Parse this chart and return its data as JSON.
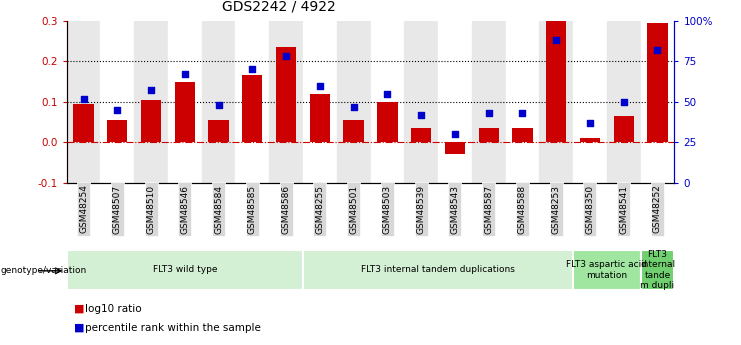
{
  "title": "GDS2242 / 4922",
  "samples": [
    "GSM48254",
    "GSM48507",
    "GSM48510",
    "GSM48546",
    "GSM48584",
    "GSM48585",
    "GSM48586",
    "GSM48255",
    "GSM48501",
    "GSM48503",
    "GSM48539",
    "GSM48543",
    "GSM48587",
    "GSM48588",
    "GSM48253",
    "GSM48350",
    "GSM48541",
    "GSM48252"
  ],
  "log10_ratio": [
    0.095,
    0.055,
    0.105,
    0.15,
    0.055,
    0.165,
    0.235,
    0.12,
    0.055,
    0.1,
    0.035,
    -0.03,
    0.035,
    0.035,
    0.3,
    0.01,
    0.065,
    0.295
  ],
  "percentile_rank": [
    52,
    45,
    57,
    67,
    48,
    70,
    78,
    60,
    47,
    55,
    42,
    30,
    43,
    43,
    88,
    37,
    50,
    82
  ],
  "groups": [
    {
      "label": "FLT3 wild type",
      "start": 0,
      "end": 7,
      "color": "#d4f0d4"
    },
    {
      "label": "FLT3 internal tandem duplications",
      "start": 7,
      "end": 15,
      "color": "#d4f0d4"
    },
    {
      "label": "FLT3 aspartic acid\nmutation",
      "start": 15,
      "end": 17,
      "color": "#a0e6a0"
    },
    {
      "label": "FLT3\ninternal\ntande\nm dupli",
      "start": 17,
      "end": 18,
      "color": "#70d070"
    }
  ],
  "bar_color": "#cc0000",
  "dot_color": "#0000cc",
  "left_ylim": [
    -0.1,
    0.3
  ],
  "right_ylim": [
    0,
    100
  ],
  "left_yticks": [
    -0.1,
    0.0,
    0.1,
    0.2,
    0.3
  ],
  "right_yticks": [
    0,
    25,
    50,
    75,
    100
  ],
  "right_yticklabels": [
    "0",
    "25",
    "50",
    "75",
    "100%"
  ],
  "hlines": [
    0.1,
    0.2
  ],
  "zero_line_color": "#cc0000",
  "col_bg_odd": "#e8e8e8",
  "col_bg_even": "#ffffff"
}
